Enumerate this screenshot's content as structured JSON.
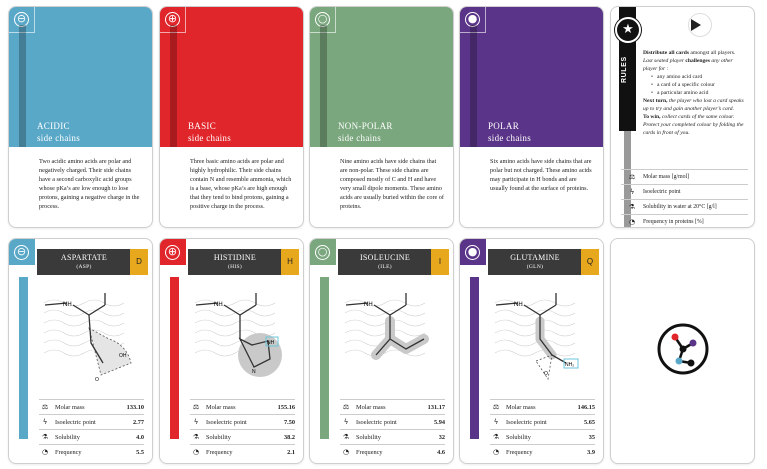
{
  "colors": {
    "acidic": "#5aa8c8",
    "basic": "#e0262b",
    "nonpolar": "#7aa77e",
    "polar": "#5a3488",
    "letter_badge": "#e8a81e",
    "dark": "#3a3a3a"
  },
  "category_cards": [
    {
      "id": "acidic",
      "symbol": "⊖",
      "title_line1": "ACIDIC",
      "title_line2": "side chains",
      "description": "Two acidic amino acids are polar and negatively charged. Their side chains have a second carboxylic acid groups whose pKa’s are low enough to lose protons, gaining a negative charge in the process."
    },
    {
      "id": "basic",
      "symbol": "⊕",
      "title_line1": "BASIC",
      "title_line2": "side chains",
      "description": "Three basic amino acids are polar and highly hydrophilic. Their side chains contain N and resemble ammonia, which is a base, whose pKa’s are high enough that they tend to bind protons, gaining a positive charge in the process."
    },
    {
      "id": "nonpolar",
      "symbol": "○",
      "title_line1": "NON-POLAR",
      "title_line2": "side chains",
      "description": "Nine amino acids have side chains that are non-polar. These side chains are composed mostly of C and H and have very small dipole moments. These amino acids are usually buried within the core of proteins."
    },
    {
      "id": "polar",
      "symbol": "●",
      "title_line1": "POLAR",
      "title_line2": "side chains",
      "description": "Six amino acids have side chains that are polar but not charged. These amino acids may participate in H bonds and are usually found at the surface of proteins."
    }
  ],
  "rules": {
    "label": "RULES",
    "p1_bold": "Distribute all cards",
    "p1_rest": " amongst all players.",
    "p2_a": "Last seated player ",
    "p2_bold": "challenges",
    "p2_b": " any other player for :",
    "items": [
      "any amino acid card",
      "a card of a specific colour",
      "a particular amino acid"
    ],
    "p3_bold": "Next turn,",
    "p3_rest": " the player who lost a card speaks up to try and gain another player’s card.",
    "p4_bold": "To win,",
    "p4_rest": " collect cards of the same colour. Protect your completed colour by folding the cards in front of you.",
    "legend": [
      {
        "icon": "scale-icon",
        "label": "Molar mass [g/mol]"
      },
      {
        "icon": "bolt-icon",
        "label": "Isoelectric point"
      },
      {
        "icon": "flask-icon",
        "label": "Solubility in water at 20°C [g/l]"
      },
      {
        "icon": "pie-icon",
        "label": "Frequency in proteins [%]"
      }
    ]
  },
  "amino_cards": [
    {
      "name": "ASPARTATE",
      "abbr": "(ASP)",
      "letter": "D",
      "category": "acidic",
      "symbol": "⊖",
      "stats": [
        {
          "label": "Molar mass",
          "value": "133.10"
        },
        {
          "label": "Isoelectric point",
          "value": "2.77"
        },
        {
          "label": "Solubility",
          "value": "4.0"
        },
        {
          "label": "Frequency",
          "value": "5.5"
        }
      ]
    },
    {
      "name": "HISTIDINE",
      "abbr": "(HIS)",
      "letter": "H",
      "category": "basic",
      "symbol": "⊕",
      "stats": [
        {
          "label": "Molar mass",
          "value": "155.16"
        },
        {
          "label": "Isoelectric point",
          "value": "7.50"
        },
        {
          "label": "Solubility",
          "value": "38.2"
        },
        {
          "label": "Frequency",
          "value": "2.1"
        }
      ]
    },
    {
      "name": "ISOLEUCINE",
      "abbr": "(ILE)",
      "letter": "I",
      "category": "nonpolar",
      "symbol": "○",
      "stats": [
        {
          "label": "Molar mass",
          "value": "131.17"
        },
        {
          "label": "Isoelectric point",
          "value": "5.94"
        },
        {
          "label": "Solubility",
          "value": "32"
        },
        {
          "label": "Frequency",
          "value": "4.6"
        }
      ]
    },
    {
      "name": "GLUTAMINE",
      "abbr": "(GLN)",
      "letter": "Q",
      "category": "polar",
      "symbol": "●",
      "stats": [
        {
          "label": "Molar mass",
          "value": "146.15"
        },
        {
          "label": "Isoelectric point",
          "value": "5.65"
        },
        {
          "label": "Solubility",
          "value": "35"
        },
        {
          "label": "Frequency",
          "value": "3.9"
        }
      ]
    }
  ],
  "molecule_labels": {
    "nh": "NH",
    "o": "O",
    "oh": "OH",
    "n": "N",
    "nh2": "NH₂"
  },
  "card_back": {
    "icon": "molecule-logo-icon"
  }
}
